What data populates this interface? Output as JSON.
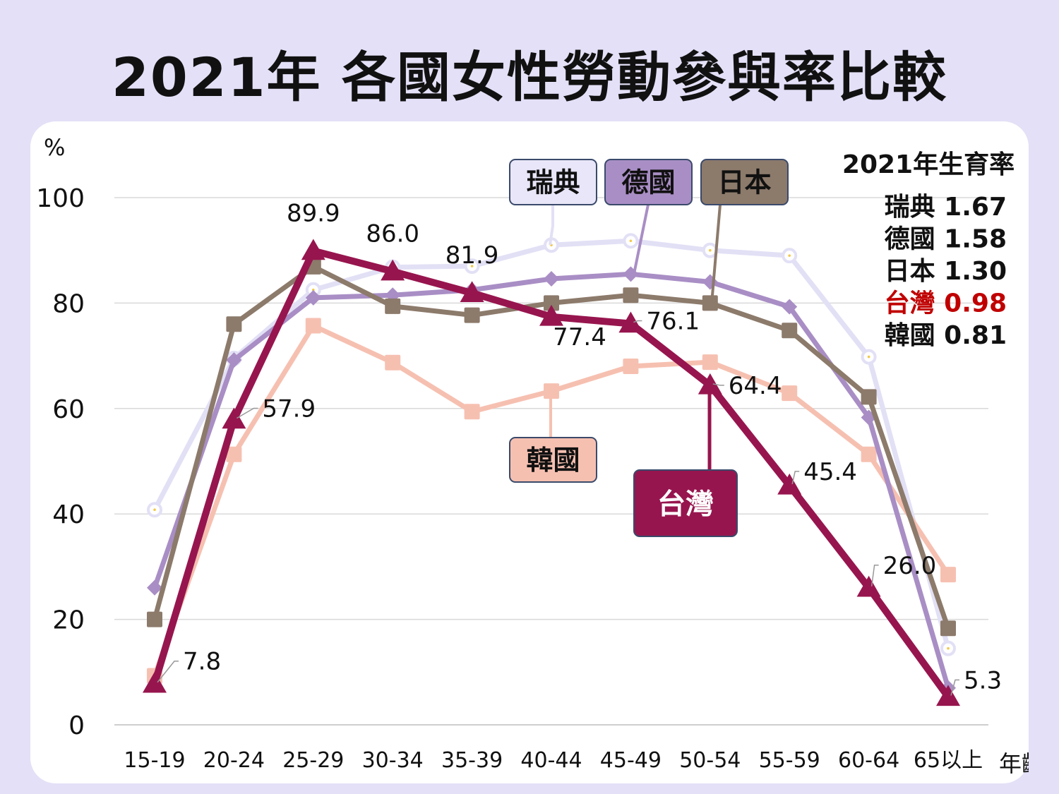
{
  "title": "2021年 各國女性勞動參與率比較",
  "chart_data": {
    "type": "line",
    "title": "2021年 各國女性勞動參與率比較",
    "ylabel": "%",
    "xlabel": "年齡",
    "ylim": [
      0,
      100
    ],
    "yticks": [
      "0",
      "20",
      "40",
      "60",
      "80",
      "100"
    ],
    "categories": [
      "15-19",
      "20-24",
      "25-29",
      "30-34",
      "35-39",
      "40-44",
      "45-49",
      "50-54",
      "55-59",
      "60-64",
      "65以上"
    ],
    "grid": true,
    "series": [
      {
        "name": "瑞典",
        "color": "#e2e0f5",
        "marker": "circle",
        "values": [
          40.8,
          69.5,
          82.5,
          86.8,
          87.0,
          91.0,
          91.8,
          90.0,
          89.0,
          69.8,
          14.5
        ]
      },
      {
        "name": "德國",
        "color": "#a98ec5",
        "marker": "diamond",
        "values": [
          26.0,
          69.2,
          81.0,
          81.5,
          82.5,
          84.6,
          85.5,
          84.0,
          79.3,
          58.3,
          7.0
        ]
      },
      {
        "name": "日本",
        "color": "#8c7a6b",
        "marker": "square",
        "values": [
          20.0,
          76.0,
          86.9,
          79.4,
          77.7,
          80.0,
          81.5,
          80.0,
          74.8,
          62.2,
          18.3
        ]
      },
      {
        "name": "韓國",
        "color": "#f6c0b1",
        "marker": "square",
        "values": [
          9.3,
          51.3,
          75.7,
          68.7,
          59.4,
          63.3,
          68.0,
          68.8,
          62.9,
          51.3,
          28.5
        ]
      },
      {
        "name": "台灣",
        "color": "#97154e",
        "marker": "triangle",
        "values": [
          7.8,
          57.9,
          89.9,
          86.0,
          81.9,
          77.4,
          76.1,
          64.4,
          45.4,
          26.0,
          5.3
        ]
      }
    ],
    "taiwan_data_labels": [
      "7.8",
      "57.9",
      "89.9",
      "86.0",
      "81.9",
      "77.4",
      "76.1",
      "64.4",
      "45.4",
      "26.0",
      "5.3"
    ],
    "fertility": {
      "title": "2021年生育率",
      "rows": [
        {
          "name": "瑞典",
          "value": "1.67",
          "color": "#111111"
        },
        {
          "name": "德國",
          "value": "1.58",
          "color": "#111111"
        },
        {
          "name": "日本",
          "value": "1.30",
          "color": "#111111"
        },
        {
          "name": "台灣",
          "value": "0.98",
          "color": "#c00000"
        },
        {
          "name": "韓國",
          "value": "0.81",
          "color": "#111111"
        }
      ]
    }
  }
}
